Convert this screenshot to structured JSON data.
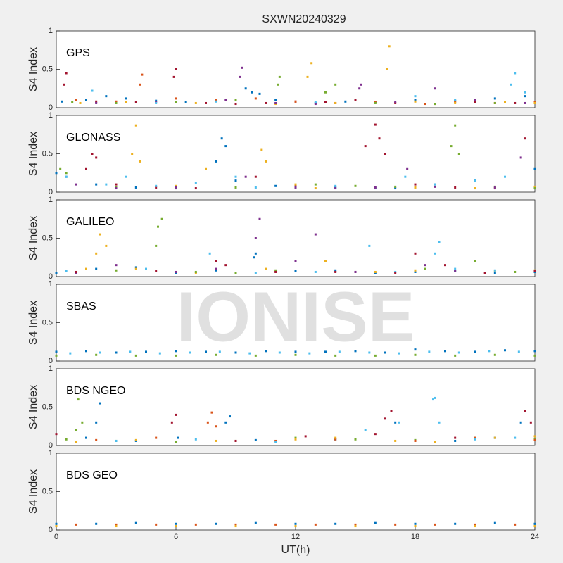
{
  "title": "SXWN20240329",
  "watermark": "IONISE",
  "chart_data": [
    {
      "type": "scatter",
      "label": "GPS",
      "ylabel": "S4 Index",
      "xlim": [
        0,
        24
      ],
      "ylim": [
        0,
        1
      ],
      "yticks": [
        0,
        0.5,
        1
      ],
      "series": [
        {
          "color": "#0072BD",
          "x": [
            0.3,
            1.5,
            2.5,
            3.5,
            5,
            6.5,
            8,
            9.5,
            9.8,
            10.2,
            11,
            13,
            14.5,
            16,
            18,
            20,
            22,
            23.5
          ],
          "values": [
            0.08,
            0.1,
            0.15,
            0.12,
            0.09,
            0.07,
            0.1,
            0.25,
            0.2,
            0.18,
            0.1,
            0.06,
            0.08,
            0.07,
            0.1,
            0.09,
            0.12,
            0.15
          ]
        },
        {
          "color": "#A2142F",
          "x": [
            0.4,
            0.5,
            2,
            4,
            5.9,
            6,
            7.5,
            9,
            10.5,
            12,
            13.5,
            15,
            17,
            19,
            21,
            23
          ],
          "values": [
            0.3,
            0.45,
            0.08,
            0.07,
            0.4,
            0.5,
            0.06,
            0.05,
            0.06,
            0.08,
            0.07,
            0.1,
            0.06,
            0.05,
            0.07,
            0.06
          ]
        },
        {
          "color": "#D95319",
          "x": [
            1,
            3,
            4.2,
            4.3,
            6,
            8,
            10,
            12,
            14,
            16,
            18.5,
            20,
            22,
            24
          ],
          "values": [
            0.1,
            0.08,
            0.3,
            0.43,
            0.12,
            0.1,
            0.12,
            0.08,
            0.06,
            0.07,
            0.05,
            0.07,
            0.06,
            0.07
          ]
        },
        {
          "color": "#EDB120",
          "x": [
            1.2,
            3.5,
            7,
            11,
            12.6,
            12.8,
            14,
            16.6,
            16.7,
            18,
            20,
            22.5,
            24
          ],
          "values": [
            0.06,
            0.07,
            0.06,
            0.05,
            0.4,
            0.58,
            0.06,
            0.5,
            0.8,
            0.08,
            0.06,
            0.07,
            0.06
          ]
        },
        {
          "color": "#7E2F8E",
          "x": [
            2,
            5,
            8.5,
            9.2,
            9.3,
            11,
            13,
            15.2,
            15.3,
            17,
            19,
            21,
            23.5
          ],
          "values": [
            0.06,
            0.07,
            0.1,
            0.4,
            0.52,
            0.06,
            0.05,
            0.25,
            0.3,
            0.07,
            0.25,
            0.1,
            0.06
          ]
        },
        {
          "color": "#77AC30",
          "x": [
            0.8,
            3,
            6,
            9,
            11.1,
            11.2,
            13.5,
            14,
            16,
            19,
            22
          ],
          "values": [
            0.07,
            0.06,
            0.07,
            0.1,
            0.3,
            0.4,
            0.2,
            0.3,
            0.06,
            0.05,
            0.06
          ]
        },
        {
          "color": "#4DBEEE",
          "x": [
            1.8,
            5,
            8,
            13,
            18,
            20,
            22.8,
            23,
            23.5
          ],
          "values": [
            0.22,
            0.06,
            0.08,
            0.07,
            0.15,
            0.1,
            0.3,
            0.45,
            0.2
          ]
        }
      ]
    },
    {
      "type": "scatter",
      "label": "GLONASS",
      "ylabel": "S4 Index",
      "xlim": [
        0,
        24
      ],
      "ylim": [
        0,
        1
      ],
      "yticks": [
        0,
        0.5,
        1
      ],
      "series": [
        {
          "color": "#0072BD",
          "x": [
            0,
            0.5,
            2,
            4,
            6,
            8,
            8.3,
            8.5,
            9,
            11,
            14,
            17,
            19,
            21,
            24
          ],
          "values": [
            0.25,
            0.2,
            0.1,
            0.06,
            0.05,
            0.4,
            0.7,
            0.6,
            0.15,
            0.08,
            0.06,
            0.05,
            0.1,
            0.15,
            0.3
          ]
        },
        {
          "color": "#A2142F",
          "x": [
            1.5,
            1.8,
            2,
            3,
            5,
            7,
            10,
            12,
            15.5,
            16,
            16.2,
            16.5,
            18,
            20,
            22,
            23.5
          ],
          "values": [
            0.3,
            0.5,
            0.45,
            0.1,
            0.06,
            0.05,
            0.2,
            0.08,
            0.6,
            0.88,
            0.7,
            0.5,
            0.1,
            0.06,
            0.05,
            0.7
          ]
        },
        {
          "color": "#EDB120",
          "x": [
            3.8,
            4,
            4.2,
            6,
            7.5,
            10.3,
            10.5,
            12,
            13,
            18,
            21,
            24
          ],
          "values": [
            0.5,
            0.87,
            0.4,
            0.08,
            0.3,
            0.55,
            0.4,
            0.1,
            0.05,
            0.06,
            0.05,
            0.07
          ]
        },
        {
          "color": "#77AC30",
          "x": [
            0.2,
            0.5,
            3,
            6,
            9,
            13,
            15,
            17,
            19.8,
            20,
            20.2,
            22,
            24
          ],
          "values": [
            0.3,
            0.25,
            0.06,
            0.05,
            0.06,
            0.1,
            0.08,
            0.07,
            0.6,
            0.87,
            0.5,
            0.07,
            0.05
          ]
        },
        {
          "color": "#4DBEEE",
          "x": [
            0.5,
            2.5,
            3.5,
            5,
            7,
            9,
            10,
            14,
            16,
            17.5,
            19,
            21,
            22.5
          ],
          "values": [
            0.2,
            0.1,
            0.2,
            0.08,
            0.12,
            0.2,
            0.06,
            0.08,
            0.05,
            0.2,
            0.1,
            0.15,
            0.2
          ]
        },
        {
          "color": "#7E2F8E",
          "x": [
            1,
            3,
            6,
            9.5,
            12,
            14,
            16,
            17.6,
            19,
            22,
            23.3
          ],
          "values": [
            0.1,
            0.05,
            0.06,
            0.2,
            0.06,
            0.05,
            0.06,
            0.3,
            0.07,
            0.06,
            0.45
          ]
        }
      ]
    },
    {
      "type": "scatter",
      "label": "GALILEO",
      "ylabel": "S4 Index",
      "xlim": [
        0,
        24
      ],
      "ylim": [
        0,
        1
      ],
      "yticks": [
        0,
        0.5,
        1
      ],
      "series": [
        {
          "color": "#0072BD",
          "x": [
            0,
            2,
            4,
            6,
            8,
            9.9,
            10,
            12,
            14,
            16,
            18,
            20,
            22,
            24
          ],
          "values": [
            0.05,
            0.1,
            0.12,
            0.05,
            0.08,
            0.25,
            0.3,
            0.07,
            0.08,
            0.05,
            0.06,
            0.07,
            0.05,
            0.06
          ]
        },
        {
          "color": "#EDB120",
          "x": [
            1.5,
            2,
            2.2,
            2.5,
            4,
            7,
            10.5,
            13.5,
            16,
            18,
            22,
            24
          ],
          "values": [
            0.1,
            0.3,
            0.55,
            0.4,
            0.1,
            0.05,
            0.1,
            0.2,
            0.06,
            0.08,
            0.07,
            0.08
          ]
        },
        {
          "color": "#77AC30",
          "x": [
            3,
            5,
            5.1,
            5.3,
            7,
            9,
            11,
            15,
            18.5,
            21,
            23
          ],
          "values": [
            0.08,
            0.4,
            0.65,
            0.75,
            0.06,
            0.05,
            0.08,
            0.06,
            0.1,
            0.2,
            0.06
          ]
        },
        {
          "color": "#7E2F8E",
          "x": [
            1,
            3,
            6,
            8,
            10,
            10.2,
            12,
            13,
            15,
            18.5,
            20
          ],
          "values": [
            0.05,
            0.15,
            0.06,
            0.1,
            0.5,
            0.75,
            0.2,
            0.55,
            0.06,
            0.15,
            0.07
          ]
        },
        {
          "color": "#4DBEEE",
          "x": [
            0.5,
            4.5,
            7.7,
            10,
            13,
            15.7,
            17,
            19,
            19.2,
            20,
            22
          ],
          "values": [
            0.07,
            0.1,
            0.3,
            0.05,
            0.06,
            0.4,
            0.06,
            0.3,
            0.45,
            0.1,
            0.08
          ]
        },
        {
          "color": "#A2142F",
          "x": [
            1,
            5,
            8,
            8.5,
            11,
            14,
            17,
            18,
            19.5,
            21.5,
            24
          ],
          "values": [
            0.06,
            0.07,
            0.2,
            0.15,
            0.06,
            0.06,
            0.05,
            0.3,
            0.15,
            0.05,
            0.07
          ]
        }
      ]
    },
    {
      "type": "scatter",
      "label": "SBAS",
      "ylabel": "S4 Index",
      "xlim": [
        0,
        24
      ],
      "ylim": [
        0,
        1
      ],
      "yticks": [
        0,
        0.5,
        1
      ],
      "series": [
        {
          "color": "#0072BD",
          "x": [
            0,
            1.5,
            3,
            4.5,
            6,
            7.5,
            9,
            10.5,
            12,
            13.5,
            15,
            16.5,
            18,
            19.5,
            21,
            22.5,
            24
          ],
          "values": [
            0.12,
            0.13,
            0.11,
            0.12,
            0.13,
            0.12,
            0.11,
            0.13,
            0.12,
            0.12,
            0.13,
            0.11,
            0.15,
            0.13,
            0.12,
            0.14,
            0.13
          ]
        },
        {
          "color": "#4DBEEE",
          "x": [
            0.7,
            2.2,
            3.7,
            5.2,
            6.7,
            8.2,
            9.7,
            11.2,
            12.7,
            14.2,
            15.7,
            17.2,
            18.7,
            20.2,
            21.7,
            23.2
          ],
          "values": [
            0.1,
            0.11,
            0.12,
            0.1,
            0.11,
            0.12,
            0.1,
            0.11,
            0.1,
            0.12,
            0.11,
            0.1,
            0.12,
            0.11,
            0.13,
            0.12
          ]
        },
        {
          "color": "#77AC30",
          "x": [
            0,
            2,
            4,
            6,
            8,
            10,
            12,
            14,
            16,
            18,
            20,
            22,
            24
          ],
          "values": [
            0.07,
            0.08,
            0.07,
            0.07,
            0.08,
            0.07,
            0.08,
            0.07,
            0.07,
            0.08,
            0.07,
            0.08,
            0.07
          ]
        }
      ]
    },
    {
      "type": "scatter",
      "label": "BDS NGEO",
      "ylabel": "S4 Index",
      "xlim": [
        0,
        24
      ],
      "ylim": [
        0,
        1
      ],
      "yticks": [
        0,
        0.5,
        1
      ],
      "series": [
        {
          "color": "#77AC30",
          "x": [
            0.5,
            1,
            1.1,
            1.3,
            3,
            6,
            9,
            12,
            15,
            18,
            21,
            24
          ],
          "values": [
            0.08,
            0.2,
            0.6,
            0.3,
            0.06,
            0.05,
            0.06,
            0.1,
            0.08,
            0.07,
            0.1,
            0.08
          ]
        },
        {
          "color": "#0072BD",
          "x": [
            1.5,
            2,
            2.2,
            4,
            6.1,
            8.5,
            8.7,
            10,
            14,
            17,
            20,
            22,
            23.3
          ],
          "values": [
            0.1,
            0.3,
            0.55,
            0.06,
            0.1,
            0.3,
            0.38,
            0.07,
            0.08,
            0.3,
            0.06,
            0.1,
            0.3
          ]
        },
        {
          "color": "#A2142F",
          "x": [
            0,
            5.8,
            6,
            9,
            12.5,
            16,
            16.5,
            16.8,
            20,
            23.5,
            23.8
          ],
          "values": [
            0.15,
            0.3,
            0.4,
            0.06,
            0.12,
            0.15,
            0.35,
            0.45,
            0.1,
            0.45,
            0.3
          ]
        },
        {
          "color": "#D95319",
          "x": [
            2,
            5,
            7.6,
            7.8,
            8,
            11,
            14,
            18,
            21,
            24
          ],
          "values": [
            0.07,
            0.1,
            0.3,
            0.43,
            0.25,
            0.06,
            0.08,
            0.06,
            0.1,
            0.07
          ]
        },
        {
          "color": "#4DBEEE",
          "x": [
            3,
            7,
            11,
            15.5,
            17.2,
            18.9,
            19,
            19.2,
            21,
            23
          ],
          "values": [
            0.06,
            0.08,
            0.05,
            0.2,
            0.3,
            0.6,
            0.62,
            0.3,
            0.08,
            0.1
          ]
        },
        {
          "color": "#EDB120",
          "x": [
            1,
            4,
            8,
            12,
            14,
            17,
            19,
            22,
            24
          ],
          "values": [
            0.05,
            0.07,
            0.06,
            0.08,
            0.1,
            0.06,
            0.05,
            0.1,
            0.12
          ]
        }
      ]
    },
    {
      "type": "scatter",
      "label": "BDS GEO",
      "ylabel": "S4 Index",
      "xlabel": "UT(h)",
      "xlim": [
        0,
        24
      ],
      "ylim": [
        0,
        1
      ],
      "yticks": [
        0,
        0.5,
        1
      ],
      "xticks": [
        0,
        6,
        12,
        18,
        24
      ],
      "series": [
        {
          "color": "#0072BD",
          "x": [
            0,
            2,
            4,
            6,
            8,
            10,
            12,
            14,
            16,
            18,
            20,
            22,
            24
          ],
          "values": [
            0.08,
            0.08,
            0.09,
            0.08,
            0.08,
            0.09,
            0.08,
            0.08,
            0.09,
            0.08,
            0.08,
            0.09,
            0.08
          ]
        },
        {
          "color": "#D95319",
          "x": [
            1,
            3,
            5,
            7,
            9,
            11,
            13,
            15,
            17,
            19,
            21,
            23
          ],
          "values": [
            0.07,
            0.07,
            0.07,
            0.07,
            0.07,
            0.07,
            0.07,
            0.07,
            0.07,
            0.07,
            0.07,
            0.07
          ]
        },
        {
          "color": "#EDB120",
          "x": [
            0,
            3,
            6,
            9,
            12,
            15,
            18,
            21,
            24
          ],
          "values": [
            0.05,
            0.05,
            0.05,
            0.05,
            0.05,
            0.05,
            0.05,
            0.05,
            0.05
          ]
        }
      ]
    }
  ]
}
